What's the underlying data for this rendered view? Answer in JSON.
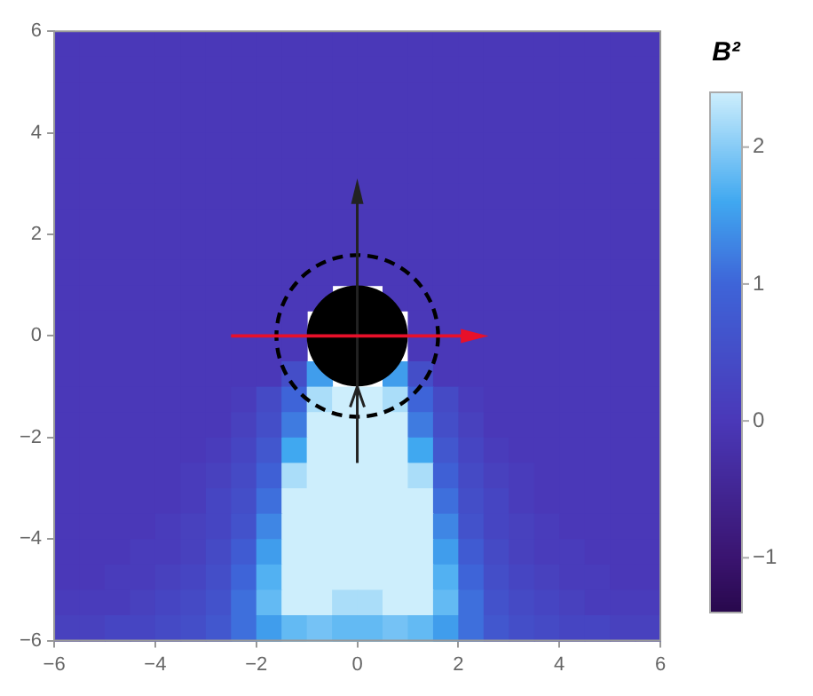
{
  "chart_data": {
    "type": "heatmap",
    "clabel": "B²",
    "xlim": [
      -6,
      6
    ],
    "xticks": [
      -6,
      -4,
      -2,
      0,
      2,
      4,
      6
    ],
    "ylim": [
      -6,
      6
    ],
    "yticks": [
      -6,
      -4,
      -2,
      0,
      2,
      4,
      6
    ],
    "clim": [
      -1.4,
      2.4
    ],
    "cticks": [
      -1,
      0,
      1,
      2
    ],
    "cells": [
      [
        0,
        0,
        0,
        0,
        0,
        0,
        0,
        0,
        0,
        0,
        0,
        0,
        0,
        0,
        0,
        0,
        0,
        0,
        0,
        0,
        0,
        0,
        0,
        0
      ],
      [
        0,
        0,
        0,
        0,
        0,
        0,
        0,
        0,
        0,
        0,
        0,
        0,
        0,
        0,
        0,
        0,
        0,
        0,
        0,
        0,
        0,
        0,
        0,
        0
      ],
      [
        0,
        0,
        0,
        0,
        0,
        0,
        0,
        0,
        0,
        0,
        0,
        0,
        0,
        0,
        0,
        0,
        0,
        0,
        0,
        0,
        0,
        0,
        0,
        0
      ],
      [
        0,
        0,
        0,
        0,
        0,
        0,
        0,
        0,
        0,
        0,
        0,
        0,
        0,
        0,
        0,
        0,
        0,
        0,
        0,
        0,
        0,
        0,
        0,
        0
      ],
      [
        0,
        0,
        0,
        0,
        0,
        0,
        0,
        0,
        0,
        0,
        0,
        0,
        0,
        0,
        0,
        0,
        0,
        0,
        0,
        0,
        0,
        0,
        0,
        0
      ],
      [
        0,
        0,
        0,
        0,
        0,
        0,
        0,
        0,
        0,
        0,
        0,
        0,
        0,
        0,
        0,
        0,
        0,
        0,
        0,
        0,
        0,
        0,
        0,
        0
      ],
      [
        0,
        0,
        0,
        0,
        0,
        0,
        0,
        0,
        0,
        0,
        0,
        0,
        0,
        0,
        0,
        0,
        0,
        0,
        0,
        0,
        0,
        0,
        0,
        0
      ],
      [
        0,
        0,
        0,
        0,
        0,
        0,
        0,
        0,
        0,
        0,
        0,
        0,
        0,
        0,
        0,
        0,
        0,
        0,
        0,
        0,
        0,
        0,
        0,
        0
      ],
      [
        0,
        0,
        0,
        0,
        0,
        0,
        0,
        0,
        0,
        0,
        0,
        0,
        0,
        0,
        0,
        0,
        0,
        0,
        0,
        0,
        0,
        0,
        0,
        0
      ],
      [
        0,
        0,
        0,
        0,
        0,
        0,
        0,
        0,
        0,
        0,
        0,
        0,
        0,
        0,
        0,
        0,
        0,
        0,
        0,
        0,
        0,
        0,
        0,
        0
      ],
      [
        0,
        0,
        0,
        0,
        0,
        0,
        0,
        0,
        0,
        0,
        0,
        null,
        null,
        0,
        0,
        0,
        0,
        0,
        0,
        0,
        0,
        0,
        0,
        0
      ],
      [
        0,
        0,
        0,
        0,
        0,
        0,
        0,
        0,
        0,
        0,
        null,
        null,
        null,
        null,
        0,
        0,
        0,
        0,
        0,
        0,
        0,
        0,
        0,
        0
      ],
      [
        0,
        0,
        0,
        0,
        0,
        0,
        0,
        0,
        0,
        0,
        null,
        null,
        null,
        null,
        0,
        0,
        0,
        0,
        0,
        0,
        0,
        0,
        0,
        0
      ],
      [
        0,
        0,
        0,
        0,
        0,
        0,
        0,
        0,
        0,
        0.5,
        1.5,
        null,
        null,
        1.5,
        0.5,
        0,
        0,
        0,
        0,
        0,
        0,
        0,
        0,
        0
      ],
      [
        0,
        0,
        0,
        0,
        0,
        0,
        0,
        0.1,
        0.4,
        1.0,
        2.2,
        2.4,
        2.4,
        2.2,
        1.0,
        0.4,
        0.1,
        0,
        0,
        0,
        0,
        0,
        0,
        0
      ],
      [
        0,
        0,
        0,
        0,
        0,
        0,
        0,
        0.2,
        0.5,
        1.2,
        2.4,
        2.4,
        2.4,
        2.4,
        1.2,
        0.5,
        0.2,
        0,
        0,
        0,
        0,
        0,
        0,
        0
      ],
      [
        0,
        0,
        0,
        0,
        0,
        0,
        0.1,
        0.3,
        0.7,
        1.6,
        2.4,
        2.4,
        2.4,
        2.4,
        1.6,
        0.7,
        0.3,
        0.1,
        0,
        0,
        0,
        0,
        0,
        0
      ],
      [
        0,
        0,
        0,
        0,
        0,
        0.1,
        0.2,
        0.4,
        0.9,
        2.2,
        2.4,
        2.4,
        2.4,
        2.4,
        2.2,
        0.9,
        0.4,
        0.2,
        0.1,
        0,
        0,
        0,
        0,
        0
      ],
      [
        0,
        0,
        0,
        0,
        0,
        0.1,
        0.3,
        0.5,
        1.1,
        2.4,
        2.4,
        2.4,
        2.4,
        2.4,
        2.4,
        1.1,
        0.5,
        0.3,
        0.1,
        0,
        0,
        0,
        0,
        0
      ],
      [
        0,
        0,
        0,
        0,
        0.1,
        0.2,
        0.3,
        0.6,
        1.3,
        2.4,
        2.4,
        2.4,
        2.4,
        2.4,
        2.4,
        1.3,
        0.6,
        0.3,
        0.2,
        0.1,
        0,
        0,
        0,
        0
      ],
      [
        0,
        0,
        0,
        0.1,
        0.1,
        0.2,
        0.4,
        0.8,
        1.5,
        2.4,
        2.4,
        2.4,
        2.4,
        2.4,
        2.4,
        1.5,
        0.8,
        0.4,
        0.2,
        0.1,
        0.1,
        0,
        0,
        0
      ],
      [
        0,
        0,
        0.1,
        0.1,
        0.2,
        0.3,
        0.5,
        1.0,
        1.7,
        2.4,
        2.4,
        2.4,
        2.4,
        2.4,
        2.4,
        1.7,
        1.0,
        0.5,
        0.3,
        0.2,
        0.1,
        0.1,
        0,
        0
      ],
      [
        0.1,
        0.1,
        0.1,
        0.2,
        0.3,
        0.4,
        0.6,
        1.1,
        1.8,
        2.4,
        2.4,
        2.2,
        2.2,
        2.4,
        2.4,
        1.8,
        1.1,
        0.6,
        0.4,
        0.3,
        0.2,
        0.1,
        0.1,
        0.1
      ],
      [
        0.2,
        0.2,
        0.3,
        0.3,
        0.4,
        0.5,
        0.7,
        1.1,
        1.5,
        1.8,
        1.9,
        1.8,
        1.8,
        1.9,
        1.8,
        1.5,
        1.1,
        0.7,
        0.5,
        0.4,
        0.3,
        0.3,
        0.2,
        0.2
      ]
    ]
  }
}
